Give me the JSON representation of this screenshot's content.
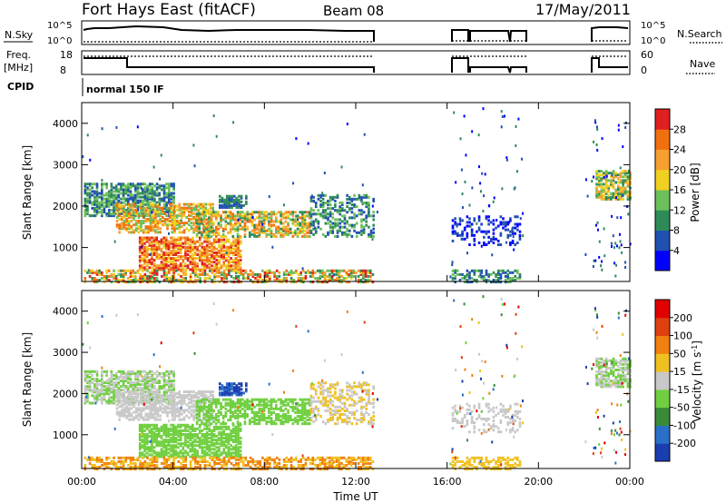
{
  "header": {
    "title": "Fort Hays East (fitACF)",
    "beam": "Beam 08",
    "date": "17/May/2011"
  },
  "top_panels": {
    "nsky_label": "N.Sky",
    "nsky_ticks": [
      "10^5",
      "10^0"
    ],
    "nsearch_label": "N.Search",
    "nsearch_ticks": [
      "10^5",
      "10^0"
    ],
    "freq_label": "Freq.",
    "freq_unit": "[MHz]",
    "freq_ticks": [
      "18",
      "8"
    ],
    "nave_label": "Nave",
    "nave_ticks": [
      "60",
      "0"
    ],
    "cpid_label": "CPID",
    "cpid_value": "normal 150 IF"
  },
  "chart_data": [
    {
      "type": "heatmap",
      "name": "power",
      "ylabel": "Slant Range [km]",
      "xlabel": "Time UT",
      "ylim": [
        180,
        4500
      ],
      "yticks": [
        "1000",
        "2000",
        "3000",
        "4000"
      ],
      "xticks": [
        "00:00",
        "04:00",
        "08:00",
        "12:00",
        "16:00",
        "20:00",
        "00:00"
      ],
      "colorbar": {
        "label": "Power [dB]",
        "ticks": [
          "4",
          "8",
          "12",
          "16",
          "20",
          "24",
          "28"
        ],
        "colors": [
          "#0000ff",
          "#2050b0",
          "#2e8b57",
          "#6cbf5a",
          "#f0d020",
          "#f5a030",
          "#f07010",
          "#e02020"
        ]
      },
      "data_coverage_hours": [
        [
          0,
          13
        ],
        [
          16.1,
          19.3
        ],
        [
          22,
          24
        ]
      ]
    },
    {
      "type": "heatmap",
      "name": "velocity",
      "ylabel": "Slant Range [km]",
      "xlabel": "Time UT",
      "ylim": [
        180,
        4500
      ],
      "yticks": [
        "1000",
        "2000",
        "3000",
        "4000"
      ],
      "xticks": [
        "00:00",
        "04:00",
        "08:00",
        "12:00",
        "16:00",
        "20:00",
        "00:00"
      ],
      "colorbar": {
        "label_main": "Velocity [m s",
        "label_sup": "-1",
        "label_end": "]",
        "ticks": [
          "200",
          "100",
          "50",
          "15",
          "-15",
          "-50",
          "-100",
          "-200"
        ],
        "colors": [
          "#1a3db0",
          "#2a70c8",
          "#3a8a3a",
          "#70cf40",
          "#c8c8c8",
          "#f0c020",
          "#f08010",
          "#e04010",
          "#e00000"
        ]
      },
      "data_coverage_hours": [
        [
          0,
          13
        ],
        [
          16.1,
          19.3
        ],
        [
          22,
          24
        ]
      ]
    }
  ],
  "xaxis": {
    "ticks": [
      "00:00",
      "04:00",
      "08:00",
      "12:00",
      "16:00",
      "20:00",
      "00:00"
    ],
    "title": "Time UT"
  }
}
